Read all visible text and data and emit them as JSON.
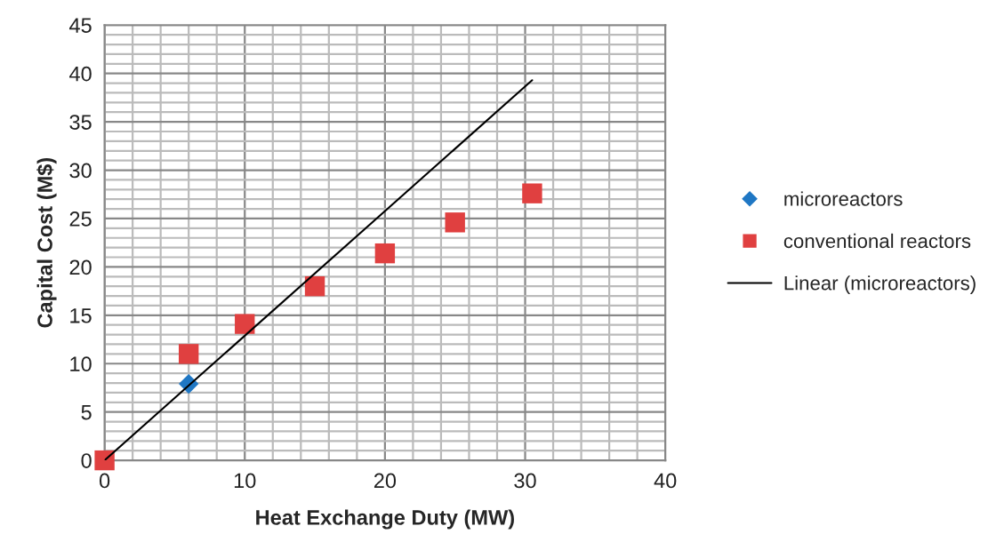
{
  "chart_data": {
    "type": "scatter",
    "xlabel": "Heat Exchange Duty (MW)",
    "ylabel": "Capital Cost (M$)",
    "series": [
      {
        "name": "microreactors",
        "marker": "diamond",
        "color": "#1f77c4",
        "x": [
          6
        ],
        "values": [
          7.9
        ]
      },
      {
        "name": "conventional reactors",
        "marker": "square",
        "color": "#e04040",
        "x": [
          0,
          6,
          10,
          15,
          20,
          25,
          30.5
        ],
        "values": [
          0,
          11.0,
          14.1,
          18.0,
          21.4,
          24.6,
          27.6
        ]
      },
      {
        "name": "Linear (microreactors)",
        "type": "line",
        "marker": "none",
        "color": "#000000",
        "x": [
          0,
          30.5
        ],
        "values": [
          0,
          39.3
        ]
      }
    ],
    "xlim": [
      0,
      40
    ],
    "ylim": [
      0,
      45
    ],
    "xticks": [
      0,
      {
        "value": 2,
        "label": null
      },
      {
        "value": 4,
        "label": null
      },
      {
        "value": 6,
        "label": null
      },
      {
        "value": 8,
        "label": null
      },
      10,
      {
        "value": 12,
        "label": null
      },
      {
        "value": 14,
        "label": null
      },
      {
        "value": 16,
        "label": null
      },
      {
        "value": 18,
        "label": null
      },
      20,
      {
        "value": 22,
        "label": null
      },
      {
        "value": 24,
        "label": null
      },
      {
        "value": 26,
        "label": null
      },
      {
        "value": 28,
        "label": null
      },
      30,
      {
        "value": 32,
        "label": null
      },
      {
        "value": 34,
        "label": null
      },
      {
        "value": 36,
        "label": null
      },
      {
        "value": 38,
        "label": null
      },
      40
    ],
    "yticks": [
      0,
      {
        "value": 1,
        "label": null
      },
      {
        "value": 2,
        "label": null
      },
      {
        "value": 3,
        "label": null
      },
      {
        "value": 4,
        "label": null
      },
      5,
      {
        "value": 6,
        "label": null
      },
      {
        "value": 7,
        "label": null
      },
      {
        "value": 8,
        "label": null
      },
      {
        "value": 9,
        "label": null
      },
      10,
      {
        "value": 11,
        "label": null
      },
      {
        "value": 12,
        "label": null
      },
      {
        "value": 13,
        "label": null
      },
      {
        "value": 14,
        "label": null
      },
      15,
      {
        "value": 16,
        "label": null
      },
      {
        "value": 17,
        "label": null
      },
      {
        "value": 18,
        "label": null
      },
      {
        "value": 19,
        "label": null
      },
      20,
      {
        "value": 21,
        "label": null
      },
      {
        "value": 22,
        "label": null
      },
      {
        "value": 23,
        "label": null
      },
      {
        "value": 24,
        "label": null
      },
      25,
      {
        "value": 26,
        "label": null
      },
      {
        "value": 27,
        "label": null
      },
      {
        "value": 28,
        "label": null
      },
      {
        "value": 29,
        "label": null
      },
      30,
      {
        "value": 31,
        "label": null
      },
      {
        "value": 32,
        "label": null
      },
      {
        "value": 33,
        "label": null
      },
      {
        "value": 34,
        "label": null
      },
      35,
      {
        "value": 36,
        "label": null
      },
      {
        "value": 37,
        "label": null
      },
      {
        "value": 38,
        "label": null
      },
      {
        "value": 39,
        "label": null
      },
      40,
      {
        "value": 41,
        "label": null
      },
      {
        "value": 42,
        "label": null
      },
      {
        "value": 43,
        "label": null
      },
      {
        "value": 44,
        "label": null
      },
      45
    ],
    "grid": true,
    "legend": "right"
  }
}
